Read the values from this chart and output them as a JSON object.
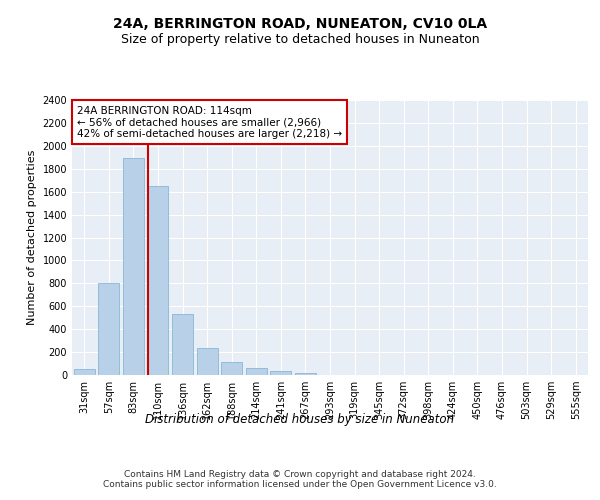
{
  "title": "24A, BERRINGTON ROAD, NUNEATON, CV10 0LA",
  "subtitle": "Size of property relative to detached houses in Nuneaton",
  "xlabel": "Distribution of detached houses by size in Nuneaton",
  "ylabel": "Number of detached properties",
  "categories": [
    "31sqm",
    "57sqm",
    "83sqm",
    "110sqm",
    "136sqm",
    "162sqm",
    "188sqm",
    "214sqm",
    "241sqm",
    "267sqm",
    "293sqm",
    "319sqm",
    "345sqm",
    "372sqm",
    "398sqm",
    "424sqm",
    "450sqm",
    "476sqm",
    "503sqm",
    "529sqm",
    "555sqm"
  ],
  "values": [
    55,
    800,
    1890,
    1650,
    535,
    240,
    110,
    58,
    35,
    20,
    0,
    0,
    0,
    0,
    0,
    0,
    0,
    0,
    0,
    0,
    0
  ],
  "bar_color": "#b8d0e8",
  "bar_edge_color": "#7aafd0",
  "red_line_index": 3,
  "annotation_text": "24A BERRINGTON ROAD: 114sqm\n← 56% of detached houses are smaller (2,966)\n42% of semi-detached houses are larger (2,218) →",
  "annotation_box_color": "#ffffff",
  "annotation_box_edge": "#cc0000",
  "red_line_color": "#cc0000",
  "ylim": [
    0,
    2400
  ],
  "yticks": [
    0,
    200,
    400,
    600,
    800,
    1000,
    1200,
    1400,
    1600,
    1800,
    2000,
    2200,
    2400
  ],
  "background_color": "#e8eef5",
  "footer_text": "Contains HM Land Registry data © Crown copyright and database right 2024.\nContains public sector information licensed under the Open Government Licence v3.0.",
  "title_fontsize": 10,
  "subtitle_fontsize": 9,
  "xlabel_fontsize": 8.5,
  "ylabel_fontsize": 8,
  "tick_fontsize": 7,
  "annotation_fontsize": 7.5,
  "footer_fontsize": 6.5
}
